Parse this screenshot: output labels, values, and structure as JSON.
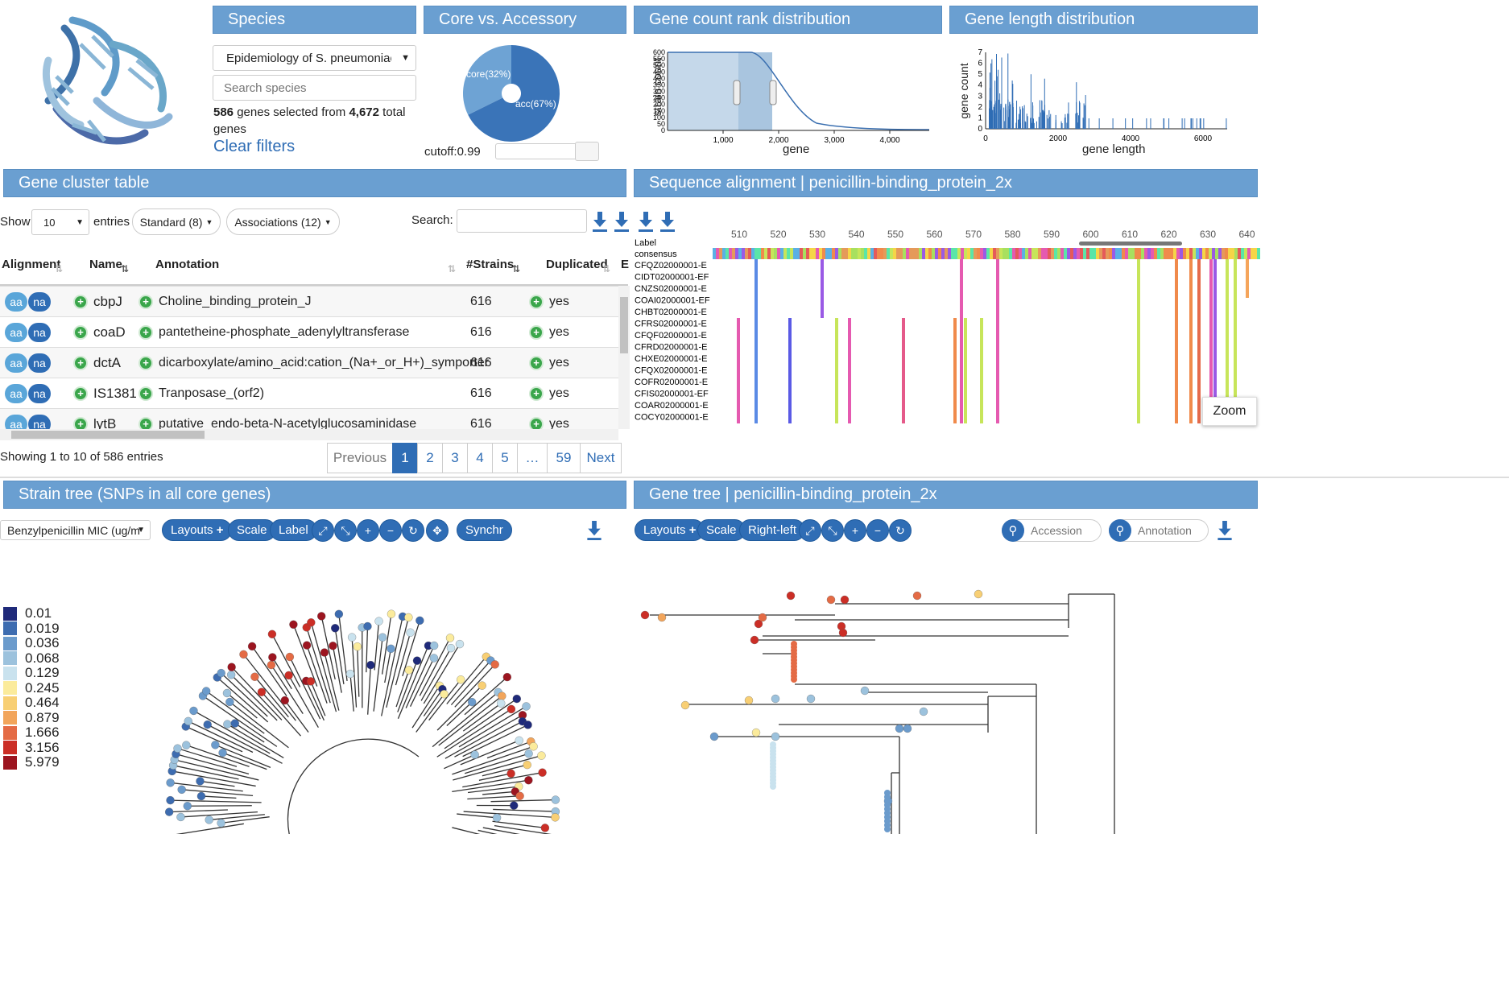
{
  "panels": {
    "species": "Species",
    "core_acc": "Core vs. Accessory",
    "gene_rank": "Gene count rank distribution",
    "gene_length": "Gene length distribution",
    "cluster_table": "Gene cluster table",
    "alignment": "Sequence alignment | penicillin-binding_protein_2x",
    "strain_tree": "Strain tree (SNPs in all core genes)",
    "gene_tree": "Gene tree | penicillin-binding_protein_2x"
  },
  "species": {
    "selected": "Epidemiology of S. pneumoniae (C",
    "search_placeholder": "Search species",
    "count_selected": "586",
    "selected_text": " genes selected from ",
    "count_total": "4,672",
    "total_text": " total genes",
    "clear": "Clear filters"
  },
  "pie": {
    "core_label": "core(32%)",
    "acc_label": "acc(67%)",
    "core_pct": 32,
    "acc_pct": 67,
    "cutoff_label": "cutoff:0.99",
    "colors": {
      "core": "#6ea3d4",
      "acc": "#3a74b8"
    }
  },
  "rank_chart": {
    "ylabel": "strain count",
    "xlabel": "gene",
    "yticks": [
      "600",
      "550",
      "500",
      "450",
      "400",
      "350",
      "300",
      "250",
      "200",
      "150",
      "100",
      "50",
      "0"
    ],
    "xticks": [
      "1,000",
      "2,000",
      "3,000",
      "4,000"
    ]
  },
  "length_chart": {
    "ylabel": "gene count",
    "xlabel": "gene length",
    "yticks": [
      "7",
      "6",
      "5",
      "4",
      "3",
      "2",
      "1",
      "0"
    ],
    "xticks": [
      "0",
      "2000",
      "4000",
      "6000"
    ]
  },
  "table": {
    "show": "Show",
    "page_size": "10",
    "entries": "entries",
    "standard": "Standard (8)",
    "associations": "Associations (12)",
    "search_label": "Search:",
    "headers": {
      "alignment": "Alignment",
      "name": "Name",
      "annotation": "Annotation",
      "strains": "#Strains",
      "duplicated": "Duplicated",
      "extra": "E"
    },
    "rows": [
      {
        "aa": "aa",
        "na": "na",
        "name": "cbpJ",
        "annotation": "Choline_binding_protein_J",
        "strains": "616",
        "dup": "yes"
      },
      {
        "aa": "aa",
        "na": "na",
        "name": "coaD",
        "annotation": "pantetheine-phosphate_adenylyltransferase",
        "strains": "616",
        "dup": "yes"
      },
      {
        "aa": "aa",
        "na": "na",
        "name": "dctA",
        "annotation": "dicarboxylate/amino_acid:cation_(Na+_or_H+)_symporter",
        "strains": "616",
        "dup": "yes"
      },
      {
        "aa": "aa",
        "na": "na",
        "name": "IS1381",
        "annotation": "Tranposase_(orf2)",
        "strains": "616",
        "dup": "yes"
      },
      {
        "aa": "aa",
        "na": "na",
        "name": "lytB",
        "annotation": "putative_endo-beta-N-acetylglucosaminidase",
        "strains": "616",
        "dup": "yes"
      }
    ],
    "info": "Showing 1 to 10 of 586 entries",
    "pagination": [
      "Previous",
      "1",
      "2",
      "3",
      "4",
      "5",
      "…",
      "59",
      "Next"
    ]
  },
  "alignment": {
    "positions": [
      "510",
      "520",
      "530",
      "540",
      "550",
      "560",
      "570",
      "580",
      "590",
      "600",
      "610",
      "620",
      "630",
      "640"
    ],
    "label_header": "Label",
    "consensus": "consensus",
    "labels": [
      "CFQZ02000001-E",
      "CIDT02000001-EF",
      "CNZS02000001-E",
      "COAI02000001-EF",
      "CHBT02000001-E",
      "CFRS02000001-E",
      "CFQF02000001-E",
      "CFRD02000001-E",
      "CHXE02000001-E",
      "CFQX02000001-E",
      "COFR02000001-E",
      "CFIS02000001-EF",
      "COAR02000001-E",
      "COCY02000001-E"
    ],
    "zoom": "Zoom"
  },
  "strain_tree": {
    "dropdown": "Benzylpenicillin MIC (ug/mL",
    "buttons": {
      "layouts": "Layouts",
      "scale": "Scale",
      "label": "Label",
      "synchr": "Synchr"
    },
    "legend": [
      {
        "label": "0.01",
        "color": "#1f2a7a"
      },
      {
        "label": "0.019",
        "color": "#3d6cb0"
      },
      {
        "label": "0.036",
        "color": "#6b9bcc"
      },
      {
        "label": "0.068",
        "color": "#9cc2dd"
      },
      {
        "label": "0.129",
        "color": "#c9e2ee"
      },
      {
        "label": "0.245",
        "color": "#fbeb9c"
      },
      {
        "label": "0.464",
        "color": "#f8cf74"
      },
      {
        "label": "0.879",
        "color": "#f2a55b"
      },
      {
        "label": "1.666",
        "color": "#e46b45"
      },
      {
        "label": "3.156",
        "color": "#cb2e26"
      },
      {
        "label": "5.979",
        "color": "#9c1520"
      }
    ]
  },
  "gene_tree": {
    "buttons": {
      "layouts": "Layouts",
      "scale": "Scale",
      "rightleft": "Right-left"
    },
    "accession_placeholder": "Accession",
    "annotation_placeholder": "Annotation"
  }
}
